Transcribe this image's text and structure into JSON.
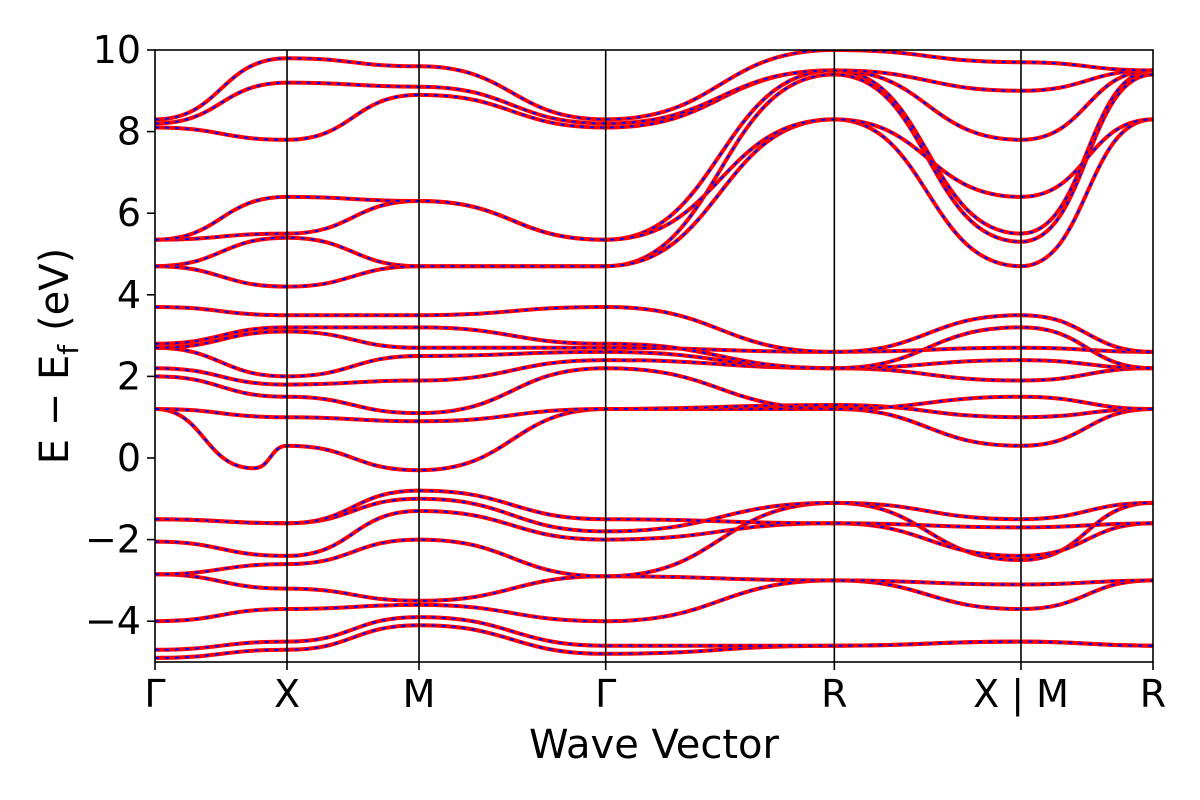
{
  "chart_data": {
    "type": "line",
    "title": "",
    "xlabel": "Wave Vector",
    "ylabel": "E − E",
    "ylabel_subscript": "f",
    "ylabel_unit": "(eV)",
    "ylim": [
      -5,
      10
    ],
    "yticks": [
      10,
      8,
      6,
      4,
      2,
      0,
      -2,
      -4
    ],
    "ytick_labels": [
      "10",
      "8",
      "6",
      "4",
      "2",
      "0",
      "−2",
      "−4"
    ],
    "kpath": [
      {
        "label": "Γ",
        "pos": 0.0
      },
      {
        "label": "X",
        "pos": 1.0
      },
      {
        "label": "M",
        "pos": 2.0
      },
      {
        "label": "Γ",
        "pos": 3.414
      },
      {
        "label": "R",
        "pos": 5.146
      },
      {
        "label": "X | M",
        "pos": 6.56
      },
      {
        "label": "R",
        "pos": 7.56
      }
    ],
    "xlim": [
      0,
      7.56
    ],
    "grid": false,
    "legend": "none",
    "series_colors": {
      "primary": "#ff0000",
      "overlay": "#0000ff"
    },
    "series": [
      {
        "values": [
          [
            0,
            -4.9
          ],
          [
            1,
            -4.7
          ],
          [
            2,
            -4.1
          ],
          [
            3.414,
            -4.8
          ],
          [
            5.146,
            -4.6
          ],
          [
            6.56,
            -4.5
          ],
          [
            7.56,
            -4.6
          ]
        ]
      },
      {
        "values": [
          [
            0,
            -4.7
          ],
          [
            1,
            -4.5
          ],
          [
            2,
            -3.9
          ],
          [
            3.414,
            -4.6
          ],
          [
            5.146,
            -4.6
          ],
          [
            6.56,
            -4.5
          ],
          [
            7.56,
            -4.6
          ]
        ]
      },
      {
        "values": [
          [
            0,
            -4.0
          ],
          [
            1,
            -3.7
          ],
          [
            2,
            -3.6
          ],
          [
            3.414,
            -4.0
          ],
          [
            5.146,
            -3.0
          ],
          [
            6.56,
            -3.7
          ],
          [
            7.56,
            -3.0
          ]
        ]
      },
      {
        "values": [
          [
            0,
            -2.85
          ],
          [
            1,
            -3.2
          ],
          [
            2,
            -3.5
          ],
          [
            3.414,
            -2.9
          ],
          [
            5.146,
            -3.0
          ],
          [
            6.56,
            -3.1
          ],
          [
            7.56,
            -3.0
          ]
        ]
      },
      {
        "values": [
          [
            0,
            -2.85
          ],
          [
            1,
            -2.6
          ],
          [
            2,
            -2.0
          ],
          [
            3.414,
            -2.9
          ],
          [
            5.146,
            -1.1
          ],
          [
            6.56,
            -2.5
          ],
          [
            7.56,
            -1.1
          ]
        ]
      },
      {
        "values": [
          [
            0,
            -2.05
          ],
          [
            1,
            -2.4
          ],
          [
            2,
            -1.3
          ],
          [
            3.414,
            -2.0
          ],
          [
            5.146,
            -1.6
          ],
          [
            6.56,
            -2.4
          ],
          [
            7.56,
            -1.6
          ]
        ]
      },
      {
        "values": [
          [
            0,
            -1.5
          ],
          [
            1,
            -1.6
          ],
          [
            2,
            -1.0
          ],
          [
            3.414,
            -1.8
          ],
          [
            5.146,
            -1.1
          ],
          [
            6.56,
            -1.5
          ],
          [
            7.56,
            -1.1
          ]
        ]
      },
      {
        "values": [
          [
            0,
            -1.5
          ],
          [
            1,
            -1.6
          ],
          [
            2,
            -0.8
          ],
          [
            3.414,
            -1.5
          ],
          [
            5.146,
            -1.6
          ],
          [
            6.56,
            -1.7
          ],
          [
            7.56,
            -1.6
          ]
        ]
      },
      {
        "values": [
          [
            0,
            1.2
          ],
          [
            0.75,
            -0.25
          ],
          [
            1,
            0.3
          ],
          [
            2,
            -0.3
          ],
          [
            3.414,
            1.2
          ],
          [
            5.146,
            1.2
          ],
          [
            6.56,
            0.3
          ],
          [
            7.56,
            1.2
          ]
        ]
      },
      {
        "values": [
          [
            0,
            1.2
          ],
          [
            1,
            1.0
          ],
          [
            2,
            0.9
          ],
          [
            3.414,
            1.2
          ],
          [
            5.146,
            1.3
          ],
          [
            6.56,
            1.0
          ],
          [
            7.56,
            1.2
          ]
        ]
      },
      {
        "values": [
          [
            0,
            2.0
          ],
          [
            1,
            1.5
          ],
          [
            2,
            1.1
          ],
          [
            3.414,
            2.2
          ],
          [
            5.146,
            1.2
          ],
          [
            6.56,
            1.5
          ],
          [
            7.56,
            1.2
          ]
        ]
      },
      {
        "values": [
          [
            0,
            2.2
          ],
          [
            1,
            1.8
          ],
          [
            2,
            1.9
          ],
          [
            3.414,
            2.4
          ],
          [
            5.146,
            2.2
          ],
          [
            6.56,
            1.9
          ],
          [
            7.56,
            2.2
          ]
        ]
      },
      {
        "values": [
          [
            0,
            2.7
          ],
          [
            1,
            2.0
          ],
          [
            2,
            2.5
          ],
          [
            3.414,
            2.6
          ],
          [
            5.146,
            2.2
          ],
          [
            6.56,
            2.4
          ],
          [
            7.56,
            2.2
          ]
        ]
      },
      {
        "values": [
          [
            0,
            2.7
          ],
          [
            1,
            3.1
          ],
          [
            2,
            2.7
          ],
          [
            3.414,
            2.7
          ],
          [
            5.146,
            2.6
          ],
          [
            6.56,
            2.7
          ],
          [
            7.56,
            2.6
          ]
        ]
      },
      {
        "values": [
          [
            0,
            2.8
          ],
          [
            1,
            3.2
          ],
          [
            2,
            3.2
          ],
          [
            3.414,
            2.8
          ],
          [
            5.146,
            2.2
          ],
          [
            6.56,
            3.2
          ],
          [
            7.56,
            2.2
          ]
        ]
      },
      {
        "values": [
          [
            0,
            3.7
          ],
          [
            1,
            3.5
          ],
          [
            2,
            3.5
          ],
          [
            3.414,
            3.7
          ],
          [
            5.146,
            2.6
          ],
          [
            6.56,
            3.5
          ],
          [
            7.56,
            2.6
          ]
        ]
      },
      {
        "values": [
          [
            0,
            4.7
          ],
          [
            1,
            5.4
          ],
          [
            2,
            4.7
          ],
          [
            3.414,
            4.7
          ],
          [
            5.146,
            9.4
          ],
          [
            6.56,
            5.3
          ],
          [
            7.56,
            9.4
          ]
        ]
      },
      {
        "values": [
          [
            0,
            4.7
          ],
          [
            1,
            4.2
          ],
          [
            2,
            4.7
          ],
          [
            3.414,
            4.7
          ],
          [
            5.146,
            8.3
          ],
          [
            6.56,
            4.7
          ],
          [
            7.56,
            8.3
          ]
        ]
      },
      {
        "values": [
          [
            0,
            5.35
          ],
          [
            1,
            5.5
          ],
          [
            2,
            6.3
          ],
          [
            3.414,
            5.35
          ],
          [
            5.146,
            9.5
          ],
          [
            6.56,
            5.5
          ],
          [
            7.56,
            9.5
          ]
        ]
      },
      {
        "values": [
          [
            0,
            5.35
          ],
          [
            1,
            6.4
          ],
          [
            2,
            6.3
          ],
          [
            3.414,
            5.35
          ],
          [
            5.146,
            8.3
          ],
          [
            6.56,
            6.4
          ],
          [
            7.56,
            8.3
          ]
        ]
      },
      {
        "values": [
          [
            0,
            8.1
          ],
          [
            1,
            7.8
          ],
          [
            2,
            8.9
          ],
          [
            3.414,
            8.1
          ],
          [
            5.146,
            9.5
          ],
          [
            6.56,
            7.8
          ],
          [
            7.56,
            9.5
          ]
        ]
      },
      {
        "values": [
          [
            0,
            8.2
          ],
          [
            1,
            9.2
          ],
          [
            2,
            9.1
          ],
          [
            3.414,
            8.2
          ],
          [
            5.146,
            9.5
          ],
          [
            6.56,
            9.0
          ],
          [
            7.56,
            9.5
          ]
        ]
      },
      {
        "values": [
          [
            0,
            8.3
          ],
          [
            1,
            9.8
          ],
          [
            2,
            9.6
          ],
          [
            3.414,
            8.3
          ],
          [
            5.146,
            10.0
          ],
          [
            6.56,
            9.7
          ],
          [
            7.56,
            9.5
          ]
        ]
      }
    ]
  }
}
